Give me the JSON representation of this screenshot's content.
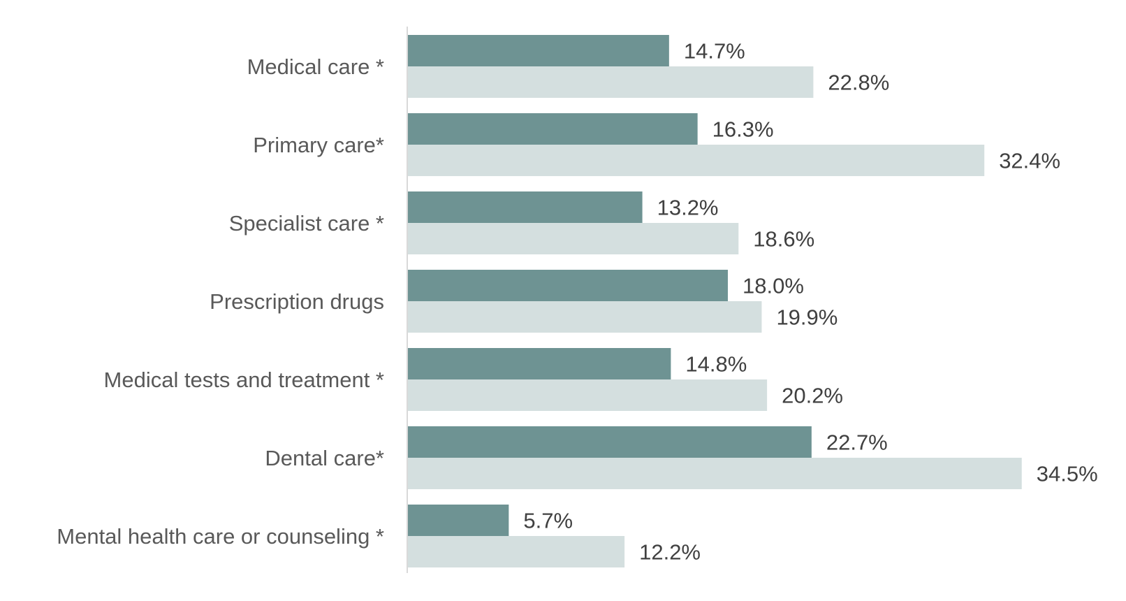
{
  "chart_data": {
    "type": "bar",
    "orientation": "horizontal",
    "title": "",
    "xlabel": "",
    "ylabel": "",
    "categories": [
      "Medical care *",
      "Primary care*",
      "Specialist care *",
      "Prescription drugs",
      "Medical tests and treatment *",
      "Dental care*",
      "Mental health care or counseling *"
    ],
    "series": [
      {
        "color": "#6e9393",
        "values": [
          14.7,
          16.3,
          13.2,
          18.0,
          14.8,
          22.7,
          5.7
        ],
        "labels": [
          "14.7%",
          "16.3%",
          "13.2%",
          "18.0%",
          "14.8%",
          "22.7%",
          "5.7%"
        ]
      },
      {
        "color": "#d4dfdf",
        "values": [
          22.8,
          32.4,
          18.6,
          19.9,
          20.2,
          34.5,
          12.2
        ],
        "labels": [
          "22.8%",
          "32.4%",
          "18.6%",
          "19.9%",
          "20.2%",
          "34.5%",
          "12.2%"
        ]
      }
    ],
    "xlim": [
      0,
      40
    ],
    "grid": false,
    "legend": "none",
    "axis_color": "#d9d9d9"
  }
}
